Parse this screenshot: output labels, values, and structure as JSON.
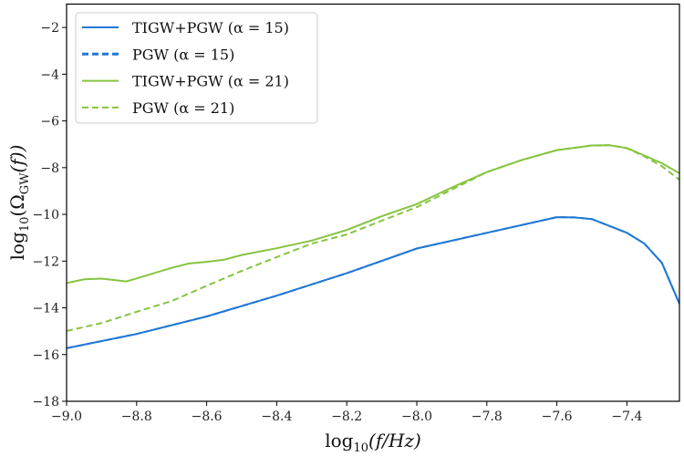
{
  "chart_data": {
    "type": "line",
    "title": "",
    "xlabel": {
      "base": "log",
      "sub": "10",
      "arg": "(f/Hz)"
    },
    "ylabel": {
      "base": "log",
      "sub": "10",
      "pre": "(Ω",
      "sub2": "GW",
      "post": "(f))"
    },
    "xlim": [
      -9.0,
      -7.25
    ],
    "ylim": [
      -18,
      -1
    ],
    "xticks": [
      -9.0,
      -8.8,
      -8.6,
      -8.4,
      -8.2,
      -8.0,
      -7.8,
      -7.6,
      -7.4
    ],
    "xtick_labels": [
      "−9.0",
      "−8.8",
      "−8.6",
      "−8.4",
      "−8.2",
      "−8.0",
      "−7.8",
      "−7.6",
      "−7.4"
    ],
    "yticks": [
      -18,
      -16,
      -14,
      -12,
      -10,
      -8,
      -6,
      -4,
      -2
    ],
    "ytick_labels": [
      "−18",
      "−16",
      "−14",
      "−12",
      "−10",
      "−8",
      "−6",
      "−4",
      "−2"
    ],
    "grid": false,
    "legend_position": "top-left",
    "series": [
      {
        "name": "TIGW+PGW (α = 15)",
        "color": "#1f77d4",
        "dash": "solid",
        "x": [
          -9.0,
          -8.8,
          -8.6,
          -8.4,
          -8.2,
          -8.0,
          -7.8,
          -7.6,
          -7.55,
          -7.5,
          -7.4,
          -7.35,
          -7.3,
          -7.25
        ],
        "y": [
          -15.73,
          -15.12,
          -14.37,
          -13.48,
          -12.52,
          -11.46,
          -10.79,
          -10.12,
          -10.13,
          -10.2,
          -10.79,
          -11.25,
          -12.08,
          -13.83
        ]
      },
      {
        "name": "PGW (α = 15)",
        "color": "#1f77d4",
        "dash": "dashed",
        "x": [
          -9.0,
          -8.8,
          -8.6,
          -8.4,
          -8.2,
          -8.0,
          -7.8,
          -7.6,
          -7.55,
          -7.5,
          -7.4,
          -7.35,
          -7.3,
          -7.25
        ],
        "y": [
          -15.73,
          -15.12,
          -14.37,
          -13.48,
          -12.52,
          -11.46,
          -10.79,
          -10.12,
          -10.13,
          -10.2,
          -10.79,
          -11.25,
          -12.08,
          -13.83
        ]
      },
      {
        "name": "TIGW+PGW (α = 21)",
        "color": "#86c440",
        "dash": "solid",
        "x": [
          -9.0,
          -8.95,
          -8.9,
          -8.83,
          -8.8,
          -8.7,
          -8.65,
          -8.6,
          -8.55,
          -8.5,
          -8.4,
          -8.3,
          -8.2,
          -8.1,
          -8.0,
          -7.9,
          -7.8,
          -7.7,
          -7.6,
          -7.5,
          -7.45,
          -7.4,
          -7.35,
          -7.3,
          -7.25
        ],
        "y": [
          -12.94,
          -12.78,
          -12.75,
          -12.87,
          -12.74,
          -12.29,
          -12.1,
          -12.03,
          -11.94,
          -11.74,
          -11.45,
          -11.12,
          -10.67,
          -10.08,
          -9.56,
          -8.85,
          -8.19,
          -7.67,
          -7.25,
          -7.05,
          -7.04,
          -7.16,
          -7.48,
          -7.81,
          -8.24
        ]
      },
      {
        "name": "PGW (α = 21)",
        "color": "#86c440",
        "dash": "dashed",
        "x": [
          -9.0,
          -8.9,
          -8.8,
          -8.7,
          -8.6,
          -8.5,
          -8.4,
          -8.3,
          -8.2,
          -8.1,
          -8.0,
          -7.9,
          -7.8,
          -7.7,
          -7.6,
          -7.5,
          -7.45,
          -7.4,
          -7.35,
          -7.3,
          -7.25
        ],
        "y": [
          -14.99,
          -14.65,
          -14.17,
          -13.71,
          -13.06,
          -12.42,
          -11.83,
          -11.25,
          -10.86,
          -10.27,
          -9.69,
          -8.94,
          -8.19,
          -7.67,
          -7.25,
          -7.05,
          -7.04,
          -7.17,
          -7.52,
          -7.94,
          -8.52
        ]
      }
    ]
  }
}
